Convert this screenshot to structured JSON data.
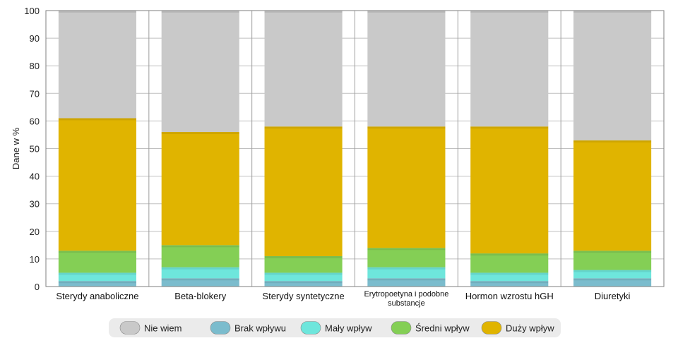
{
  "chart_data": {
    "type": "bar",
    "stacked": true,
    "title": "",
    "xlabel": "",
    "ylabel": "Dane w %",
    "ylim": [
      0,
      100
    ],
    "yticks": [
      0,
      10,
      20,
      30,
      40,
      50,
      60,
      70,
      80,
      90,
      100
    ],
    "grid": true,
    "legend_position": "bottom",
    "categories": [
      "Sterydy anaboliczne",
      "Beta-blokery",
      "Sterydy syntetyczne",
      "Erytropoetyna i podobne substancje",
      "Hormon wzrostu hGH",
      "Diuretyki"
    ],
    "series": [
      {
        "name": "Brak wpływu",
        "color": "#7bbccd",
        "values": [
          2,
          3,
          2,
          3,
          2,
          3
        ]
      },
      {
        "name": "Mały wpływ",
        "color": "#6ee6dc",
        "values": [
          3,
          4,
          3,
          4,
          3,
          3
        ]
      },
      {
        "name": "Średni wpływ",
        "color": "#84cf55",
        "values": [
          8,
          8,
          6,
          7,
          7,
          7
        ]
      },
      {
        "name": "Duży wpływ",
        "color": "#e0b400",
        "values": [
          48,
          41,
          47,
          44,
          46,
          40
        ]
      },
      {
        "name": "Nie wiem",
        "color": "#c9c9c9",
        "values": [
          39,
          44,
          42,
          42,
          42,
          47
        ]
      }
    ],
    "legend_order": [
      "Nie wiem",
      "Brak wpływu",
      "Mały wpływ",
      "Średni wpływ",
      "Duży wpływ"
    ]
  }
}
